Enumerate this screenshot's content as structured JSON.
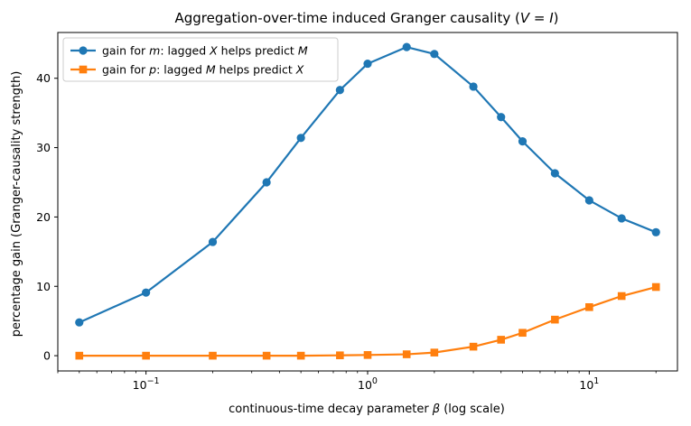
{
  "chart_data": {
    "type": "line",
    "title": "Aggregation-over-time induced Granger causality (V = I)",
    "xlabel": "continuous-time decay parameter β  (log scale)",
    "ylabel": "percentage gain  (Granger-causality strength)",
    "xscale": "log",
    "xlim": [
      0.04,
      25
    ],
    "ylim": [
      -2.2,
      46.6
    ],
    "x": [
      0.05,
      0.1,
      0.2,
      0.35,
      0.5,
      0.75,
      1.0,
      1.5,
      2.0,
      3.0,
      4.0,
      5.0,
      7.0,
      10.0,
      14.0,
      20.0
    ],
    "xticks": [
      {
        "value": 0.1,
        "base": "10",
        "exp": "−1"
      },
      {
        "value": 1,
        "base": "10",
        "exp": "0"
      },
      {
        "value": 10,
        "base": "10",
        "exp": "1"
      }
    ],
    "yticks": [
      "0",
      "10",
      "20",
      "30",
      "40"
    ],
    "grid": false,
    "legend_position": "upper-left",
    "series": [
      {
        "name": "gain for m: lagged X helps predict M",
        "color": "#1f77b4",
        "marker": "circle",
        "values": [
          4.8,
          9.1,
          16.4,
          25.0,
          31.4,
          38.3,
          42.1,
          44.5,
          43.5,
          38.8,
          34.4,
          30.9,
          26.3,
          22.4,
          19.8,
          17.8
        ]
      },
      {
        "name": "gain for p: lagged M helps predict X",
        "color": "#ff7f0e",
        "marker": "square",
        "values": [
          0.0,
          0.0,
          0.0,
          0.0,
          0.0,
          0.05,
          0.1,
          0.2,
          0.45,
          1.3,
          2.3,
          3.3,
          5.2,
          7.0,
          8.6,
          9.9
        ]
      }
    ]
  }
}
